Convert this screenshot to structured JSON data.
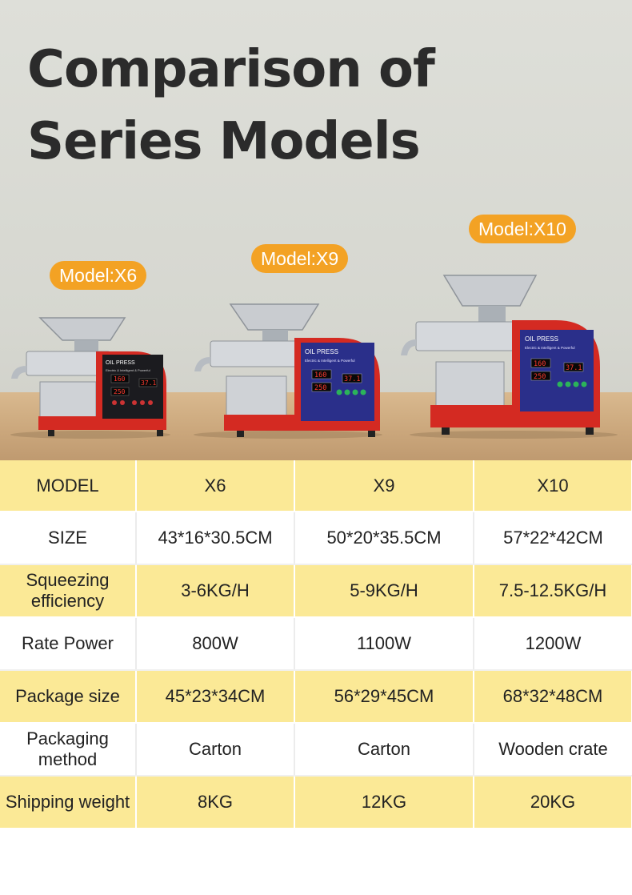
{
  "title": {
    "line1": "Comparison of",
    "line2": "Series Models"
  },
  "models": [
    {
      "tag": "Model:X6",
      "panel_label": "OIL PRESS",
      "panel_sub": "Electric & Intelligent & Powerful",
      "display_top": "160",
      "display_right": "37.1",
      "display_bottom": "250"
    },
    {
      "tag": "Model:X9",
      "panel_label": "OIL PRESS",
      "panel_sub": "Electric & Intelligent & Powerful",
      "display_top": "160",
      "display_right": "37.1",
      "display_bottom": "250"
    },
    {
      "tag": "Model:X10",
      "panel_label": "OIL PRESS",
      "panel_sub": "Electric & Intelligent & Powerful",
      "display_top": "160",
      "display_right": "37.1",
      "display_bottom": "250"
    }
  ],
  "colors": {
    "accent_tag": "#f3a224",
    "row_yellow": "#fbe996",
    "machine_red": "#d42a22",
    "panel_blue": "#2a2f8a"
  },
  "table": {
    "rows": [
      {
        "label": "MODEL",
        "values": [
          "X6",
          "X9",
          "X10"
        ]
      },
      {
        "label": "SIZE",
        "values": [
          "43*16*30.5CM",
          "50*20*35.5CM",
          "57*22*42CM"
        ]
      },
      {
        "label": "Squeezing efficiency",
        "values": [
          "3-6KG/H",
          "5-9KG/H",
          "7.5-12.5KG/H"
        ]
      },
      {
        "label": "Rate Power",
        "values": [
          "800W",
          "1100W",
          "1200W"
        ]
      },
      {
        "label": "Package size",
        "values": [
          "45*23*34CM",
          "56*29*45CM",
          "68*32*48CM"
        ]
      },
      {
        "label": "Packaging method",
        "values": [
          "Carton",
          "Carton",
          "Wooden crate"
        ]
      },
      {
        "label": "Shipping weight",
        "values": [
          "8KG",
          "12KG",
          "20KG"
        ]
      }
    ]
  }
}
